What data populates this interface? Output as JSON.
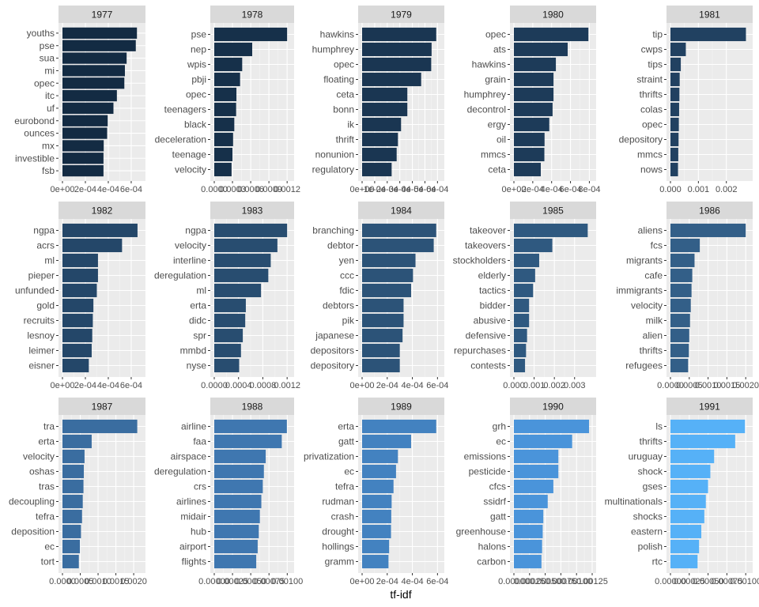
{
  "chart_data": {
    "type": "bar",
    "orientation": "horizontal",
    "xlabel": "tf-idf",
    "ylabel": "",
    "grid": true,
    "facet_layout": "3 rows x 5 columns",
    "facets": [
      {
        "title": "1977",
        "color": "#132B43",
        "categories": [
          "youths",
          "pse",
          "sua",
          "mi",
          "opec",
          "itc",
          "uf",
          "eurobond",
          "ounces",
          "mx",
          "investible",
          "fsb"
        ],
        "values": [
          0.00065,
          0.00064,
          0.00056,
          0.000545,
          0.00054,
          0.000475,
          0.000445,
          0.000395,
          0.00039,
          0.00036,
          0.000358,
          0.000358
        ],
        "xlim": [
          0,
          0.00069
        ],
        "ticks": [
          0,
          0.0002,
          0.0004,
          0.0006
        ],
        "tick_labels": [
          "0e+00",
          "2e-04",
          "4e-04",
          "6e-04"
        ]
      },
      {
        "title": "1978",
        "color": "#16304A",
        "categories": [
          "pse",
          "nep",
          "wpis",
          "pbji",
          "opec",
          "teenagers",
          "black",
          "deceleration",
          "teenage",
          "velocity"
        ],
        "values": [
          0.0012,
          0.000625,
          0.00046,
          0.000425,
          0.000365,
          0.00036,
          0.00033,
          0.00031,
          0.0003,
          0.000285
        ],
        "xlim": [
          0,
          0.00125
        ],
        "ticks": [
          0,
          0.0003,
          0.0006,
          0.0009,
          0.0012
        ],
        "tick_labels": [
          "0.0000",
          "0.0003",
          "0.0006",
          "0.0009",
          "0.0012"
        ]
      },
      {
        "title": "1979",
        "color": "#1A3652",
        "categories": [
          "hawkins",
          "humphrey",
          "opec",
          "floating",
          "ceta",
          "bonn",
          "ik",
          "thrift",
          "nonunion",
          "regulatory"
        ],
        "values": [
          0.00059,
          0.000553,
          0.00055,
          0.00047,
          0.00036,
          0.00036,
          0.00031,
          0.000285,
          0.000275,
          0.000235
        ],
        "xlim": [
          0,
          0.000623
        ],
        "ticks": [
          0,
          0.0001,
          0.0002,
          0.0003,
          0.0004,
          0.0005,
          0.0006
        ],
        "tick_labels": [
          "0e+00",
          "1e-04",
          "2e-04",
          "3e-04",
          "4e-04",
          "5e-04",
          "6e-04"
        ]
      },
      {
        "title": "1980",
        "color": "#1D3B59",
        "categories": [
          "opec",
          "ats",
          "hawkins",
          "grain",
          "humphrey",
          "decontrol",
          "ergy",
          "oil",
          "mmcs",
          "ceta"
        ],
        "values": [
          0.00079,
          0.00057,
          0.000445,
          0.00042,
          0.00042,
          0.00041,
          0.000375,
          0.000325,
          0.000323,
          0.000285
        ],
        "xlim": [
          0,
          0.00083
        ],
        "ticks": [
          0,
          0.0002,
          0.0004,
          0.0006,
          0.0008
        ],
        "tick_labels": [
          "0e+00",
          "2e-04",
          "4e-04",
          "6e-04",
          "8e-04"
        ]
      },
      {
        "title": "1981",
        "color": "#214161",
        "categories": [
          "tip",
          "cwps",
          "tips",
          "straint",
          "thrifts",
          "colas",
          "opec",
          "depository",
          "mmcs",
          "nows"
        ],
        "values": [
          0.0027,
          0.00055,
          0.00037,
          0.00033,
          0.00032,
          0.00031,
          0.0003,
          0.00029,
          0.00028,
          0.00027
        ],
        "xlim": [
          0,
          0.0028
        ],
        "ticks": [
          0,
          0.001,
          0.002
        ],
        "tick_labels": [
          "0.000",
          "0.001",
          "0.002"
        ]
      },
      {
        "title": "1982",
        "color": "#244769",
        "categories": [
          "ngpa",
          "acrs",
          "ml",
          "pieper",
          "unfunded",
          "gold",
          "recruits",
          "lesnoy",
          "leimer",
          "eisner"
        ],
        "values": [
          0.000655,
          0.00052,
          0.00031,
          0.00031,
          0.0003,
          0.00027,
          0.000265,
          0.00026,
          0.000255,
          0.00023
        ],
        "xlim": [
          0,
          0.00069
        ],
        "ticks": [
          0,
          0.0002,
          0.0004,
          0.0006
        ],
        "tick_labels": [
          "0e+00",
          "2e-04",
          "4e-04",
          "6e-04"
        ]
      },
      {
        "title": "1983",
        "color": "#284D70",
        "categories": [
          "ngpa",
          "velocity",
          "interline",
          "deregulation",
          "ml",
          "erta",
          "didc",
          "spr",
          "mmbd",
          "nyse"
        ],
        "values": [
          0.0012,
          0.00104,
          0.00093,
          0.00089,
          0.00077,
          0.00052,
          0.00051,
          0.00047,
          0.00044,
          0.00041
        ],
        "xlim": [
          0,
          0.00125
        ],
        "ticks": [
          0,
          0.0004,
          0.0008,
          0.0012
        ],
        "tick_labels": [
          "0.0000",
          "0.0004",
          "0.0008",
          "0.0012"
        ]
      },
      {
        "title": "1984",
        "color": "#2C5378",
        "categories": [
          "branching",
          "debtor",
          "yen",
          "ccc",
          "fdic",
          "debtors",
          "pik",
          "japanese",
          "depositors",
          "depository"
        ],
        "values": [
          0.00059,
          0.00057,
          0.000425,
          0.000405,
          0.00039,
          0.00033,
          0.00033,
          0.000322,
          0.0003,
          0.0003
        ],
        "xlim": [
          0,
          0.000623
        ],
        "ticks": [
          0,
          0.0002,
          0.0004,
          0.0006
        ],
        "tick_labels": [
          "0e+00",
          "2e-04",
          "4e-04",
          "6e-04"
        ]
      },
      {
        "title": "1985",
        "color": "#2F5980",
        "categories": [
          "takeover",
          "takeovers",
          "stockholders",
          "elderly",
          "tactics",
          "bidder",
          "abusive",
          "defensive",
          "repurchases",
          "contests"
        ],
        "values": [
          0.00365,
          0.0019,
          0.00125,
          0.00105,
          0.00095,
          0.00075,
          0.00075,
          0.00065,
          0.0006,
          0.00055
        ],
        "xlim": [
          0,
          0.00387
        ],
        "ticks": [
          0,
          0.001,
          0.002,
          0.003
        ],
        "tick_labels": [
          "0.000",
          "0.001",
          "0.002",
          "0.003"
        ]
      },
      {
        "title": "1986",
        "color": "#335F88",
        "categories": [
          "aliens",
          "fcs",
          "migrants",
          "cafe",
          "immigrants",
          "velocity",
          "milk",
          "alien",
          "thrifts",
          "refugees"
        ],
        "values": [
          0.002,
          0.00078,
          0.00064,
          0.00058,
          0.00056,
          0.00054,
          0.00052,
          0.0005,
          0.00049,
          0.00047
        ],
        "xlim": [
          0,
          0.00208
        ],
        "ticks": [
          0,
          0.0005,
          0.001,
          0.0015,
          0.002
        ],
        "tick_labels": [
          "0.0000",
          "0.0005",
          "0.0010",
          "0.0015",
          "0.0020"
        ]
      },
      {
        "title": "1987",
        "color": "#3A6DA0",
        "categories": [
          "tra",
          "erta",
          "velocity",
          "oshas",
          "tras",
          "decoupling",
          "tefra",
          "deposition",
          "ec",
          "tort"
        ],
        "values": [
          0.0021,
          0.00082,
          0.00062,
          0.0006,
          0.00059,
          0.00057,
          0.00055,
          0.00052,
          0.00049,
          0.00046
        ],
        "xlim": [
          0,
          0.00222
        ],
        "ticks": [
          0,
          0.0005,
          0.001,
          0.0015,
          0.002
        ],
        "tick_labels": [
          "0.0000",
          "0.0005",
          "0.0010",
          "0.0015",
          "0.0020"
        ]
      },
      {
        "title": "1988",
        "color": "#3F77B0",
        "categories": [
          "airline",
          "faa",
          "airspace",
          "deregulation",
          "crs",
          "airlines",
          "midair",
          "hub",
          "airport",
          "flights"
        ],
        "values": [
          0.000995,
          0.000925,
          0.000705,
          0.00068,
          0.000665,
          0.000645,
          0.000625,
          0.00061,
          0.000595,
          0.000575
        ],
        "xlim": [
          0,
          0.00104
        ],
        "ticks": [
          0,
          0.00025,
          0.0005,
          0.00075,
          0.001
        ],
        "tick_labels": [
          "0.00000",
          "0.00025",
          "0.00050",
          "0.00075",
          "0.00100"
        ]
      },
      {
        "title": "1989",
        "color": "#4382C0",
        "categories": [
          "erta",
          "gatt",
          "privatization",
          "ec",
          "tefra",
          "rudman",
          "crash",
          "drought",
          "hollings",
          "gramm"
        ],
        "values": [
          0.00059,
          0.00039,
          0.000285,
          0.00027,
          0.00025,
          0.000235,
          0.000232,
          0.00023,
          0.000215,
          0.00021
        ],
        "xlim": [
          0,
          0.000623
        ],
        "ticks": [
          0,
          0.0002,
          0.0004,
          0.0006
        ],
        "tick_labels": [
          "0e+00",
          "2e-04",
          "4e-04",
          "6e-04"
        ]
      },
      {
        "title": "1990",
        "color": "#4A94DA",
        "categories": [
          "grh",
          "ec",
          "emissions",
          "pesticide",
          "cfcs",
          "ssidrf",
          "gatt",
          "greenhouse",
          "halons",
          "carbon"
        ],
        "values": [
          0.0012,
          0.00093,
          0.00071,
          0.00071,
          0.00063,
          0.00054,
          0.00047,
          0.00046,
          0.00045,
          0.00044
        ],
        "xlim": [
          0,
          0.00125
        ],
        "ticks": [
          0,
          0.00025,
          0.0005,
          0.00075,
          0.001,
          0.00125
        ],
        "tick_labels": [
          "0.00000",
          "0.00025",
          "0.00050",
          "0.00075",
          "0.00100",
          "0.00125"
        ]
      },
      {
        "title": "1991",
        "color": "#56B1F7",
        "categories": [
          "ls",
          "thrifts",
          "uruguay",
          "shock",
          "gses",
          "multinationals",
          "shocks",
          "eastern",
          "polish",
          "rtc"
        ],
        "values": [
          0.00099,
          0.00086,
          0.00058,
          0.00053,
          0.0005,
          0.00047,
          0.00045,
          0.00041,
          0.00038,
          0.00036
        ],
        "xlim": [
          0,
          0.00104
        ],
        "ticks": [
          0,
          0.00025,
          0.0005,
          0.00075,
          0.001
        ],
        "tick_labels": [
          "0.00000",
          "0.00025",
          "0.00050",
          "0.00075",
          "0.00100"
        ]
      }
    ]
  }
}
